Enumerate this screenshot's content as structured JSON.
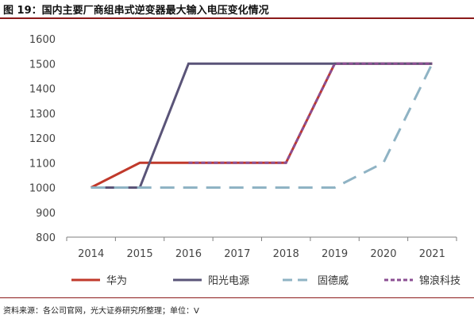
{
  "figure": {
    "title": "图 19：国内主要厂商组串式逆变器最大输入电压变化情况",
    "source": "资料来源：各公司官网，光大证券研究所整理；单位：V"
  },
  "chart_data": {
    "type": "line",
    "title": "图 19：国内主要厂商组串式逆变器最大输入电压变化情况",
    "xlabel": "",
    "ylabel": "",
    "x": [
      "2014",
      "2015",
      "2016",
      "2017",
      "2018",
      "2019",
      "2020",
      "2021"
    ],
    "ylim": [
      800,
      1600
    ],
    "yticks": [
      800,
      900,
      1000,
      1100,
      1200,
      1300,
      1400,
      1500,
      1600
    ],
    "grid": false,
    "legend_position": "bottom",
    "series": [
      {
        "name": "华为",
        "values": [
          1000,
          1100,
          1100,
          1100,
          1100,
          1500,
          1500,
          1500
        ],
        "color": "#c0392b",
        "dash": "solid"
      },
      {
        "name": "阳光电源",
        "values": [
          1000,
          1000,
          1500,
          1500,
          1500,
          1500,
          1500,
          1500
        ],
        "color": "#5a5478",
        "dash": "solid"
      },
      {
        "name": "固德威",
        "values": [
          1000,
          1000,
          1000,
          1000,
          1000,
          1000,
          1100,
          1500
        ],
        "color": "#8fb3c4",
        "dash": "long-dash"
      },
      {
        "name": "锦浪科技",
        "values": [
          null,
          null,
          1100,
          1100,
          1100,
          1500,
          1500,
          1500
        ],
        "color": "#8b4f93",
        "dash": "short-dash"
      }
    ]
  }
}
